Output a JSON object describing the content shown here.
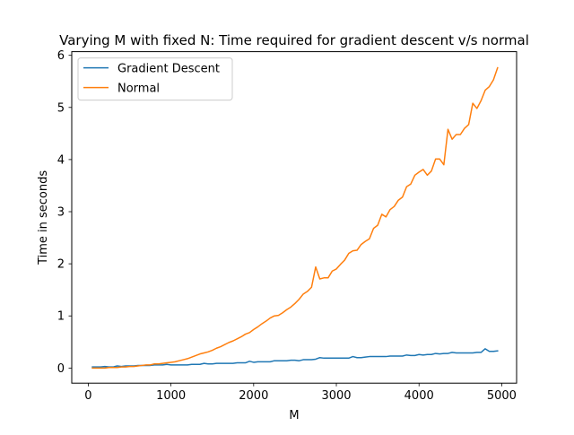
{
  "chart_data": {
    "type": "line",
    "title": "Varying M with fixed N: Time required for gradient descent v/s normal",
    "xlabel": "M",
    "ylabel": "Time in seconds",
    "xlim": [
      -200,
      5180
    ],
    "ylim": [
      -0.29,
      6.07
    ],
    "xticks": [
      0,
      1000,
      2000,
      3000,
      4000,
      5000
    ],
    "yticks": [
      0,
      1,
      2,
      3,
      4,
      5,
      6
    ],
    "grid": false,
    "legend": "upper left",
    "x": [
      50,
      100,
      150,
      200,
      250,
      300,
      350,
      400,
      450,
      500,
      550,
      600,
      650,
      700,
      750,
      800,
      850,
      900,
      950,
      1000,
      1050,
      1100,
      1150,
      1200,
      1250,
      1300,
      1350,
      1400,
      1450,
      1500,
      1550,
      1600,
      1650,
      1700,
      1750,
      1800,
      1850,
      1900,
      1950,
      2000,
      2050,
      2100,
      2150,
      2200,
      2250,
      2300,
      2350,
      2400,
      2450,
      2500,
      2550,
      2600,
      2650,
      2700,
      2750,
      2800,
      2850,
      2900,
      2950,
      3000,
      3050,
      3100,
      3150,
      3200,
      3250,
      3300,
      3350,
      3400,
      3450,
      3500,
      3550,
      3600,
      3650,
      3700,
      3750,
      3800,
      3850,
      3900,
      3950,
      4000,
      4050,
      4100,
      4150,
      4200,
      4250,
      4300,
      4350,
      4400,
      4450,
      4500,
      4550,
      4600,
      4650,
      4700,
      4750,
      4800,
      4850,
      4900,
      4950
    ],
    "series": [
      {
        "name": "Gradient Descent",
        "color": "#1f77b4",
        "values": [
          0.02,
          0.02,
          0.02,
          0.03,
          0.02,
          0.02,
          0.04,
          0.03,
          0.04,
          0.04,
          0.04,
          0.05,
          0.05,
          0.05,
          0.05,
          0.06,
          0.06,
          0.06,
          0.07,
          0.06,
          0.06,
          0.06,
          0.06,
          0.06,
          0.07,
          0.07,
          0.07,
          0.09,
          0.08,
          0.08,
          0.09,
          0.09,
          0.09,
          0.09,
          0.09,
          0.1,
          0.1,
          0.1,
          0.13,
          0.11,
          0.12,
          0.12,
          0.12,
          0.12,
          0.14,
          0.14,
          0.14,
          0.14,
          0.15,
          0.15,
          0.14,
          0.16,
          0.16,
          0.16,
          0.17,
          0.2,
          0.19,
          0.19,
          0.19,
          0.19,
          0.19,
          0.19,
          0.19,
          0.22,
          0.2,
          0.2,
          0.21,
          0.22,
          0.22,
          0.22,
          0.22,
          0.22,
          0.23,
          0.23,
          0.23,
          0.23,
          0.25,
          0.24,
          0.24,
          0.26,
          0.25,
          0.26,
          0.26,
          0.28,
          0.27,
          0.28,
          0.28,
          0.3,
          0.29,
          0.29,
          0.29,
          0.29,
          0.29,
          0.3,
          0.3,
          0.37,
          0.32,
          0.32,
          0.33
        ]
      },
      {
        "name": "Normal",
        "color": "#ff7f0e",
        "values": [
          0.0,
          0.0,
          0.0,
          0.0,
          0.01,
          0.01,
          0.01,
          0.02,
          0.02,
          0.03,
          0.03,
          0.04,
          0.05,
          0.06,
          0.06,
          0.08,
          0.08,
          0.09,
          0.1,
          0.11,
          0.12,
          0.14,
          0.16,
          0.18,
          0.21,
          0.24,
          0.27,
          0.29,
          0.31,
          0.34,
          0.38,
          0.41,
          0.45,
          0.49,
          0.52,
          0.56,
          0.6,
          0.65,
          0.68,
          0.74,
          0.79,
          0.85,
          0.9,
          0.96,
          1.0,
          1.01,
          1.06,
          1.12,
          1.17,
          1.24,
          1.32,
          1.42,
          1.47,
          1.55,
          1.94,
          1.71,
          1.73,
          1.73,
          1.86,
          1.9,
          1.99,
          2.07,
          2.2,
          2.25,
          2.26,
          2.37,
          2.43,
          2.48,
          2.68,
          2.74,
          2.95,
          2.9,
          3.04,
          3.1,
          3.22,
          3.28,
          3.48,
          3.53,
          3.7,
          3.76,
          3.81,
          3.7,
          3.78,
          4.01,
          4.01,
          3.9,
          4.58,
          4.39,
          4.48,
          4.48,
          4.6,
          4.67,
          5.08,
          4.98,
          5.13,
          5.33,
          5.4,
          5.53,
          5.76
        ]
      }
    ]
  }
}
